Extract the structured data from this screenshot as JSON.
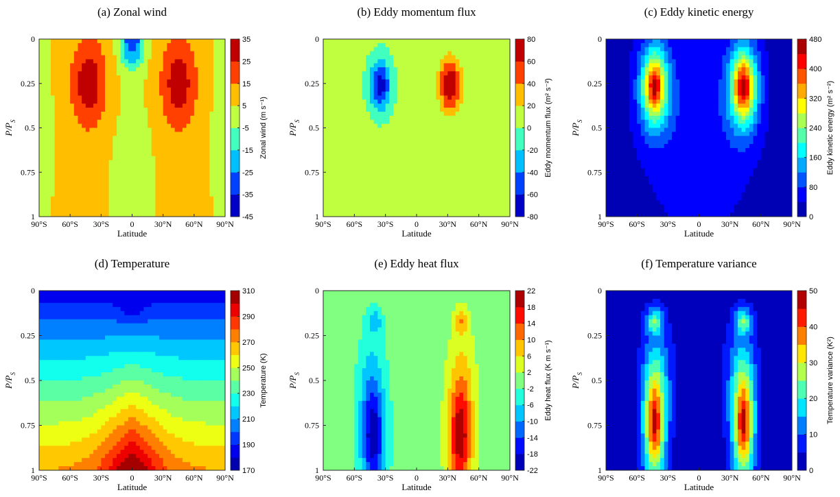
{
  "figure": {
    "xlabel": "Latitude",
    "ylabel_text": "P/P_S"
  },
  "chart_data": [
    {
      "id": "a",
      "type": "heatmap",
      "title": "(a) Zonal wind",
      "xlabel": "Latitude",
      "ylabel": "P/P_S",
      "x_ticks": [
        "90°S",
        "60°S",
        "30°S",
        "0",
        "30°N",
        "60°N",
        "90°N"
      ],
      "y_ticks": [
        "0",
        "0.25",
        "0.5",
        "0.75",
        "1"
      ],
      "xlim": [
        -90,
        90
      ],
      "ylim": [
        0,
        1
      ],
      "y_reversed": true,
      "colorbar": {
        "label": "Zonal wind (m s⁻¹)",
        "min": -45,
        "max": 35,
        "step": 10,
        "ticks": [
          "35",
          "25",
          "15",
          "5",
          "-5",
          "-15",
          "-25",
          "-35",
          "-45"
        ]
      },
      "field": {
        "background": 7,
        "features": [
          {
            "lat": -42,
            "p": 0.25,
            "slat": 15,
            "sp": 0.22,
            "amp": 30,
            "expon": 1.5
          },
          {
            "lat": 45,
            "p": 0.25,
            "slat": 15,
            "sp": 0.22,
            "amp": 30,
            "expon": 1.5
          },
          {
            "lat": 0,
            "p": 0.0,
            "slat": 12,
            "sp": 0.16,
            "amp": -40,
            "expon": 2
          },
          {
            "lat": 0,
            "p": 0.75,
            "slat": 20,
            "sp": 0.5,
            "amp": -8,
            "expon": 2
          },
          {
            "lat": -85,
            "p": 0.5,
            "slat": 10,
            "sp": 0.6,
            "amp": -6,
            "expon": 2
          },
          {
            "lat": 85,
            "p": 0.5,
            "slat": 10,
            "sp": 0.6,
            "amp": -6,
            "expon": 2
          }
        ]
      }
    },
    {
      "id": "b",
      "type": "heatmap",
      "title": "(b) Eddy momentum flux",
      "xlabel": "Latitude",
      "ylabel": "P/P_S",
      "x_ticks": [
        "90°S",
        "60°S",
        "30°S",
        "0",
        "30°N",
        "60°N",
        "90°N"
      ],
      "y_ticks": [
        "0",
        "0.25",
        "0.5",
        "0.75",
        "1"
      ],
      "xlim": [
        -90,
        90
      ],
      "ylim": [
        0,
        1
      ],
      "y_reversed": true,
      "colorbar": {
        "label": "Eddy momentum flux (m² s⁻²)",
        "min": -80,
        "max": 80,
        "step": 20,
        "ticks": [
          "80",
          "60",
          "40",
          "20",
          "0",
          "-20",
          "-40",
          "-60",
          "-80"
        ]
      },
      "field": {
        "background": 5,
        "features": [
          {
            "lat": -35,
            "p": 0.26,
            "slat": 10,
            "sp": 0.14,
            "amp": -75,
            "expon": 2
          },
          {
            "lat": 32,
            "p": 0.26,
            "slat": 10,
            "sp": 0.14,
            "amp": 80,
            "expon": 2
          }
        ]
      }
    },
    {
      "id": "c",
      "type": "heatmap",
      "title": "(c) Eddy kinetic energy",
      "xlabel": "Latitude",
      "ylabel": "P/P_S",
      "x_ticks": [
        "90°S",
        "60°S",
        "30°S",
        "0",
        "30°N",
        "60°N",
        "90°N"
      ],
      "y_ticks": [
        "0",
        "0.25",
        "0.5",
        "0.75",
        "1"
      ],
      "xlim": [
        -90,
        90
      ],
      "ylim": [
        0,
        1
      ],
      "y_reversed": true,
      "colorbar": {
        "label": "Eddy kinetic energy (m² s⁻²)",
        "min": 0,
        "max": 480,
        "step": 40,
        "ticks": [
          "480",
          "400",
          "320",
          "240",
          "160",
          "80",
          "0"
        ]
      },
      "field": {
        "background": 20,
        "features": [
          {
            "lat": -43,
            "p": 0.27,
            "slat": 12,
            "sp": 0.2,
            "amp": 430,
            "expon": 1.6
          },
          {
            "lat": 43,
            "p": 0.27,
            "slat": 12,
            "sp": 0.2,
            "amp": 450,
            "expon": 1.6
          },
          {
            "lat": 0,
            "p": 0.55,
            "slat": 50,
            "sp": 0.6,
            "amp": 50,
            "expon": 2
          }
        ]
      }
    },
    {
      "id": "d",
      "type": "heatmap",
      "title": "(d) Temperature",
      "xlabel": "Latitude",
      "ylabel": "P/P_S",
      "x_ticks": [
        "90°S",
        "60°S",
        "30°S",
        "0",
        "30°N",
        "60°N",
        "90°N"
      ],
      "y_ticks": [
        "0",
        "0.25",
        "0.5",
        "0.75",
        "1"
      ],
      "xlim": [
        -90,
        90
      ],
      "ylim": [
        0,
        1
      ],
      "y_reversed": true,
      "colorbar": {
        "label": "Temperature (K)",
        "min": 170,
        "max": 310,
        "step": 10,
        "ticks": [
          "310",
          "290",
          "270",
          "250",
          "230",
          "210",
          "190",
          "170"
        ]
      },
      "field": {
        "profile": "temperature",
        "base": 180,
        "slope": 90,
        "power": 0.85,
        "warm_amp": 45,
        "warm_slat": 28,
        "warm_power": 1.5,
        "cold_lat": 0,
        "cold_p": 0.12,
        "cold_slat": 12,
        "cold_sp": 0.05,
        "cold_amp": -10
      }
    },
    {
      "id": "e",
      "type": "heatmap",
      "title": "(e) Eddy heat flux",
      "xlabel": "Latitude",
      "ylabel": "P/P_S",
      "x_ticks": [
        "90°S",
        "60°S",
        "30°S",
        "0",
        "30°N",
        "60°N",
        "90°N"
      ],
      "y_ticks": [
        "0",
        "0.25",
        "0.5",
        "0.75",
        "1"
      ],
      "xlim": [
        -90,
        90
      ],
      "ylim": [
        0,
        1
      ],
      "y_reversed": true,
      "colorbar": {
        "label": "Eddy heat flux (K m s⁻¹)",
        "min": -22,
        "max": 22,
        "step": 4,
        "ticks": [
          "22",
          "18",
          "14",
          "10",
          "6",
          "2",
          "-2",
          "-6",
          "-10",
          "-14",
          "-18",
          "-22"
        ]
      },
      "field": {
        "background": 0,
        "features": [
          {
            "lat": -42,
            "p": 0.82,
            "slat": 11,
            "sp": 0.3,
            "amp": -22,
            "expon": 1.7
          },
          {
            "lat": 42,
            "p": 0.82,
            "slat": 11,
            "sp": 0.3,
            "amp": 22,
            "expon": 1.7
          },
          {
            "lat": -40,
            "p": 0.17,
            "slat": 7,
            "sp": 0.07,
            "amp": -7,
            "expon": 2
          },
          {
            "lat": 43,
            "p": 0.17,
            "slat": 7,
            "sp": 0.07,
            "amp": 8,
            "expon": 2
          },
          {
            "lat": -44,
            "p": 0.45,
            "slat": 13,
            "sp": 0.3,
            "amp": -4,
            "expon": 2
          },
          {
            "lat": 44,
            "p": 0.45,
            "slat": 13,
            "sp": 0.3,
            "amp": 4,
            "expon": 2
          }
        ]
      }
    },
    {
      "id": "f",
      "type": "heatmap",
      "title": "(f) Temperature variance",
      "xlabel": "Latitude",
      "ylabel": "P/P_S",
      "x_ticks": [
        "90°S",
        "60°S",
        "30°S",
        "0",
        "30°N",
        "60°N",
        "90°N"
      ],
      "y_ticks": [
        "0",
        "0.25",
        "0.5",
        "0.75",
        "1"
      ],
      "xlim": [
        -90,
        90
      ],
      "ylim": [
        0,
        1
      ],
      "y_reversed": true,
      "colorbar": {
        "label": "Temperature variance (K²)",
        "min": 0,
        "max": 50,
        "step": 5,
        "ticks": [
          "50",
          "40",
          "30",
          "20",
          "10",
          "0"
        ]
      },
      "field": {
        "background": 2,
        "features": [
          {
            "lat": -43,
            "p": 0.75,
            "slat": 10,
            "sp": 0.3,
            "amp": 43,
            "expon": 1.7
          },
          {
            "lat": 43,
            "p": 0.75,
            "slat": 10,
            "sp": 0.3,
            "amp": 43,
            "expon": 1.7
          },
          {
            "lat": -43,
            "p": 0.17,
            "slat": 8,
            "sp": 0.07,
            "amp": 18,
            "expon": 2
          },
          {
            "lat": 43,
            "p": 0.17,
            "slat": 8,
            "sp": 0.07,
            "amp": 18,
            "expon": 2
          },
          {
            "lat": -40,
            "p": 0.45,
            "slat": 16,
            "sp": 0.3,
            "amp": 8,
            "expon": 2
          },
          {
            "lat": 40,
            "p": 0.45,
            "slat": 16,
            "sp": 0.3,
            "amp": 8,
            "expon": 2
          }
        ]
      }
    }
  ]
}
